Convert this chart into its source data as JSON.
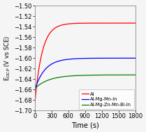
{
  "title": "",
  "xlabel": "Time (s)",
  "ylabel": "E$_{OCP}$ (V vs SCE)",
  "xlim": [
    0,
    1800
  ],
  "ylim": [
    -1.7,
    -1.5
  ],
  "yticks": [
    -1.7,
    -1.68,
    -1.66,
    -1.64,
    -1.62,
    -1.6,
    -1.58,
    -1.56,
    -1.54,
    -1.52,
    -1.5
  ],
  "xticks": [
    0,
    300,
    600,
    900,
    1200,
    1500,
    1800
  ],
  "series": [
    {
      "label": "Al",
      "color": "#ff0000",
      "y0": -1.685,
      "y_end": -1.533,
      "tau": 130
    },
    {
      "label": "Al-Mg-Mn-In",
      "color": "#0000ff",
      "y0": -1.66,
      "y_end": -1.6,
      "tau": 180
    },
    {
      "label": "Al-Mg-Zn-Mn-Bi-In",
      "color": "#008000",
      "y0": -1.658,
      "y_end": -1.632,
      "tau": 250
    }
  ],
  "legend_loc": "lower right",
  "background_color": "#f5f5f5",
  "axes_background": "#f5f5f5",
  "grid_color": "#cccccc",
  "linewidth": 0.9,
  "xlabel_fontsize": 7,
  "ylabel_fontsize": 6,
  "tick_labelsize": 6,
  "legend_fontsize": 4.8,
  "fig_width": 2.09,
  "fig_height": 1.89,
  "dpi": 100
}
